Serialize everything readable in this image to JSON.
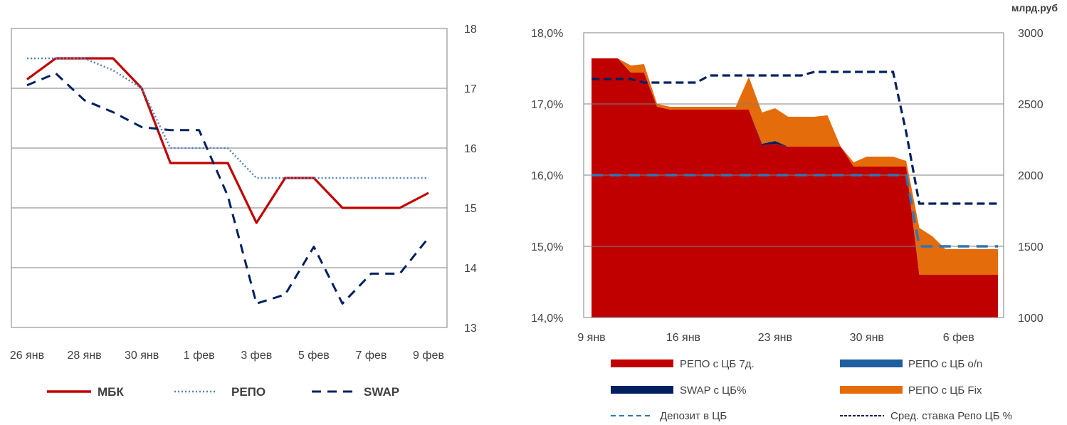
{
  "colors": {
    "mbk": "#C00000",
    "repo": "#4F81BD",
    "swap": "#002060",
    "repo7d": "#C00000",
    "repo_on": "#1F5F9F",
    "swap_cb": "#002060",
    "repo_fix": "#E46C0A",
    "deposit": "#2E75B6",
    "avg_repo": "#002060",
    "grid": "#7F7F7F"
  },
  "chart_data": [
    {
      "type": "line",
      "title": "",
      "categories": [
        "26 янв",
        "27 янв",
        "28 янв",
        "29 янв",
        "30 янв",
        "31 янв",
        "1 фев",
        "2 фев",
        "3 фев",
        "4 фев",
        "5 фев",
        "6 фев",
        "7 фев",
        "8 фев",
        "9 фев"
      ],
      "tick_labels": [
        "26 янв",
        "28 янв",
        "30 янв",
        "1 фев",
        "3 фев",
        "5 фев",
        "7 фев",
        "9 фев"
      ],
      "y_axis_position": "right",
      "ylim": [
        13,
        18
      ],
      "yticks": [
        "13",
        "14",
        "15",
        "16",
        "17",
        "18"
      ],
      "grid": true,
      "legend_position": "bottom",
      "series": [
        {
          "name": "МБК",
          "style": "solid",
          "values": [
            17.15,
            17.5,
            17.5,
            17.5,
            17.0,
            15.75,
            15.75,
            15.75,
            14.75,
            15.5,
            15.5,
            15.0,
            15.0,
            15.0,
            15.25
          ]
        },
        {
          "name": "РЕПО",
          "style": "dotted",
          "values": [
            17.5,
            17.5,
            17.5,
            17.3,
            17.0,
            16.0,
            16.0,
            16.0,
            15.5,
            15.5,
            15.5,
            15.5,
            15.5,
            15.5,
            15.5
          ]
        },
        {
          "name": "SWAP",
          "style": "dashed",
          "values": [
            17.05,
            17.25,
            16.8,
            16.6,
            16.35,
            16.3,
            16.3,
            15.2,
            13.4,
            13.55,
            14.35,
            13.4,
            13.9,
            13.9,
            14.5
          ]
        }
      ]
    },
    {
      "type": "area",
      "title": "",
      "unit_label": "млрд.руб",
      "x_tick_labels": [
        "9 янв",
        "16 янв",
        "23 янв",
        "30 янв",
        "6 фев"
      ],
      "categories": [
        "9 янв",
        "10 янв",
        "11 янв",
        "12 янв",
        "13 янв",
        "14 янв",
        "15 янв",
        "16 янв",
        "17 янв",
        "18 янв",
        "19 янв",
        "20 янв",
        "21 янв",
        "22 янв",
        "23 янв",
        "24 янв",
        "25 янв",
        "26 янв",
        "27 янв",
        "28 янв",
        "29 янв",
        "30 янв",
        "31 янв",
        "1 фев",
        "2 фев",
        "3 фев",
        "4 фев",
        "5 фев",
        "6 фев",
        "7 фев",
        "8 фев",
        "9 фев"
      ],
      "y_left": {
        "ylim": [
          14.0,
          18.0
        ],
        "ticks": [
          "14,0%",
          "15,0%",
          "16,0%",
          "17,0%",
          "18,0%"
        ]
      },
      "y_right": {
        "ylim": [
          1000,
          3000
        ],
        "ticks": [
          "1000",
          "1500",
          "2000",
          "2500",
          "3000"
        ]
      },
      "grid": true,
      "legend_position": "bottom",
      "stacked_series_right_axis": [
        {
          "name": "РЕПО с ЦБ 7д.",
          "values": [
            2820,
            2820,
            2820,
            2720,
            2720,
            2480,
            2460,
            2460,
            2460,
            2460,
            2460,
            2460,
            2460,
            2210,
            2220,
            2200,
            2200,
            2200,
            2200,
            2200,
            2060,
            2060,
            2060,
            2060,
            2060,
            1300,
            1300,
            1300,
            1300,
            1300,
            1300,
            1300
          ]
        },
        {
          "name": "РЕПО с ЦБ o/n",
          "values": [
            0,
            0,
            0,
            0,
            0,
            0,
            0,
            0,
            0,
            0,
            0,
            0,
            0,
            0,
            0,
            0,
            0,
            0,
            0,
            0,
            0,
            0,
            0,
            0,
            0,
            0,
            0,
            0,
            0,
            0,
            0,
            0
          ]
        },
        {
          "name": "SWAP с ЦБ%",
          "values": [
            0,
            0,
            0,
            0,
            0,
            0,
            0,
            0,
            0,
            0,
            0,
            0,
            0,
            10,
            20,
            0,
            0,
            0,
            0,
            0,
            0,
            0,
            0,
            0,
            0,
            0,
            0,
            0,
            0,
            0,
            0,
            0
          ]
        },
        {
          "name": "РЕПО с ЦБ Fix",
          "values": [
            0,
            0,
            0,
            50,
            60,
            20,
            20,
            20,
            20,
            20,
            20,
            20,
            230,
            220,
            230,
            210,
            210,
            210,
            220,
            0,
            30,
            70,
            70,
            70,
            40,
            330,
            270,
            180,
            180,
            180,
            180,
            180
          ]
        }
      ],
      "line_series_left_axis": [
        {
          "name": "Депозит в ЦБ",
          "style": "dashed",
          "values": [
            16.0,
            16.0,
            16.0,
            16.0,
            16.0,
            16.0,
            16.0,
            16.0,
            16.0,
            16.0,
            16.0,
            16.0,
            16.0,
            16.0,
            16.0,
            16.0,
            16.0,
            16.0,
            16.0,
            16.0,
            16.0,
            16.0,
            16.0,
            16.0,
            16.0,
            15.0,
            15.0,
            15.0,
            15.0,
            15.0,
            15.0,
            15.0
          ]
        },
        {
          "name": "Сред. ставка Репо ЦБ %",
          "style": "dashed",
          "values": [
            17.35,
            17.35,
            17.35,
            17.35,
            17.3,
            17.3,
            17.3,
            17.3,
            17.3,
            17.4,
            17.4,
            17.4,
            17.4,
            17.4,
            17.4,
            17.4,
            17.4,
            17.45,
            17.45,
            17.45,
            17.45,
            17.45,
            17.45,
            17.45,
            16.6,
            15.6,
            15.6,
            15.6,
            15.6,
            15.6,
            15.6,
            15.6
          ]
        }
      ]
    }
  ]
}
